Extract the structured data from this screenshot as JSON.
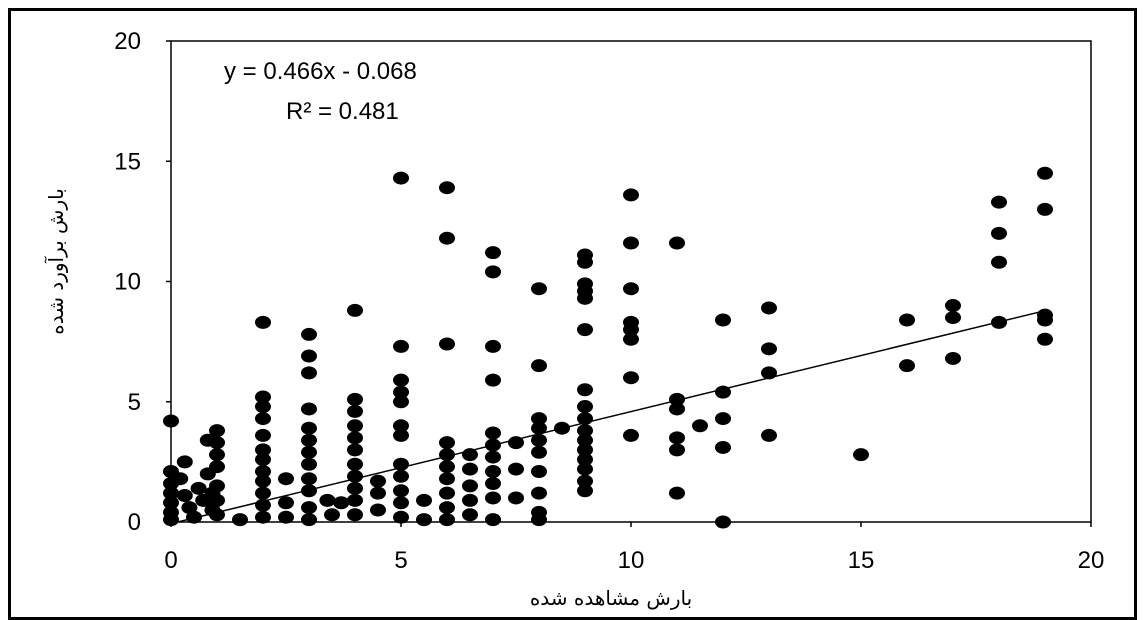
{
  "chart_data": {
    "type": "scatter",
    "title": "",
    "xlabel": "بارش مشاهده شده",
    "ylabel": "بارش برآورد شده",
    "xlim": [
      0,
      20
    ],
    "ylim": [
      0,
      20
    ],
    "xticks": [
      "0",
      "5",
      "10",
      "15",
      "20"
    ],
    "yticks": [
      "0",
      "5",
      "10",
      "15",
      "20"
    ],
    "grid": false,
    "trendline": {
      "slope": 0.466,
      "intercept": -0.068,
      "x_range": [
        0,
        19
      ]
    },
    "annotations": [
      "y = 0.466x - 0.068",
      "R² = 0.481"
    ],
    "marker_color": "#000000",
    "points": [
      [
        0,
        4.2
      ],
      [
        0,
        2.1
      ],
      [
        0,
        1.6
      ],
      [
        0,
        1.2
      ],
      [
        0,
        0.8
      ],
      [
        0,
        0.4
      ],
      [
        0,
        0.1
      ],
      [
        0.3,
        2.5
      ],
      [
        0.2,
        1.8
      ],
      [
        0.3,
        1.1
      ],
      [
        0.4,
        0.6
      ],
      [
        0.5,
        0.2
      ],
      [
        0.6,
        1.4
      ],
      [
        0.7,
        0.9
      ],
      [
        0.8,
        3.4
      ],
      [
        0.8,
        2.0
      ],
      [
        0.9,
        1.2
      ],
      [
        0.9,
        0.5
      ],
      [
        1,
        3.8
      ],
      [
        1,
        3.3
      ],
      [
        1,
        2.8
      ],
      [
        1,
        2.3
      ],
      [
        1,
        1.5
      ],
      [
        1,
        0.9
      ],
      [
        1,
        0.3
      ],
      [
        1.5,
        0.1
      ],
      [
        2,
        8.3
      ],
      [
        2,
        5.2
      ],
      [
        2,
        4.8
      ],
      [
        2,
        4.3
      ],
      [
        2,
        3.6
      ],
      [
        2,
        3.0
      ],
      [
        2,
        2.6
      ],
      [
        2,
        2.1
      ],
      [
        2,
        1.7
      ],
      [
        2,
        1.2
      ],
      [
        2,
        0.7
      ],
      [
        2,
        0.2
      ],
      [
        2.5,
        1.8
      ],
      [
        2.5,
        0.8
      ],
      [
        2.5,
        0.2
      ],
      [
        3,
        7.8
      ],
      [
        3,
        6.9
      ],
      [
        3,
        6.2
      ],
      [
        3,
        4.7
      ],
      [
        3,
        3.9
      ],
      [
        3,
        3.4
      ],
      [
        3,
        2.9
      ],
      [
        3,
        2.4
      ],
      [
        3,
        1.8
      ],
      [
        3,
        1.3
      ],
      [
        3,
        0.6
      ],
      [
        3,
        0.1
      ],
      [
        3.4,
        0.9
      ],
      [
        3.5,
        0.3
      ],
      [
        3.7,
        0.8
      ],
      [
        4,
        8.8
      ],
      [
        4,
        5.1
      ],
      [
        4,
        4.6
      ],
      [
        4,
        4.0
      ],
      [
        4,
        3.5
      ],
      [
        4,
        3.0
      ],
      [
        4,
        2.4
      ],
      [
        4,
        1.9
      ],
      [
        4,
        1.4
      ],
      [
        4,
        0.9
      ],
      [
        4,
        0.3
      ],
      [
        4.5,
        1.7
      ],
      [
        4.5,
        1.2
      ],
      [
        4.5,
        0.5
      ],
      [
        5,
        14.3
      ],
      [
        5,
        7.3
      ],
      [
        5,
        5.9
      ],
      [
        5,
        5.4
      ],
      [
        5,
        5.0
      ],
      [
        5,
        4.0
      ],
      [
        5,
        3.6
      ],
      [
        5,
        2.4
      ],
      [
        5,
        1.9
      ],
      [
        5,
        1.3
      ],
      [
        5,
        0.8
      ],
      [
        5,
        0.2
      ],
      [
        5.5,
        0.1
      ],
      [
        5.5,
        0.9
      ],
      [
        6,
        13.9
      ],
      [
        6,
        11.8
      ],
      [
        6,
        7.4
      ],
      [
        6,
        3.3
      ],
      [
        6,
        2.8
      ],
      [
        6,
        2.3
      ],
      [
        6,
        1.8
      ],
      [
        6,
        1.2
      ],
      [
        6,
        0.6
      ],
      [
        6,
        0.1
      ],
      [
        6.5,
        2.8
      ],
      [
        6.5,
        2.2
      ],
      [
        6.5,
        1.5
      ],
      [
        6.5,
        0.9
      ],
      [
        6.5,
        0.3
      ],
      [
        7,
        11.2
      ],
      [
        7,
        10.4
      ],
      [
        7,
        7.3
      ],
      [
        7,
        5.9
      ],
      [
        7,
        3.7
      ],
      [
        7,
        3.2
      ],
      [
        7,
        2.7
      ],
      [
        7,
        2.1
      ],
      [
        7,
        1.6
      ],
      [
        7,
        1.0
      ],
      [
        7,
        0.1
      ],
      [
        7.5,
        3.3
      ],
      [
        7.5,
        2.2
      ],
      [
        7.5,
        1.0
      ],
      [
        8,
        9.7
      ],
      [
        8,
        6.5
      ],
      [
        8,
        4.3
      ],
      [
        8,
        3.9
      ],
      [
        8,
        3.4
      ],
      [
        8,
        2.9
      ],
      [
        8,
        2.1
      ],
      [
        8,
        1.2
      ],
      [
        8,
        0.4
      ],
      [
        8,
        0.1
      ],
      [
        8.5,
        3.9
      ],
      [
        9,
        11.1
      ],
      [
        9,
        10.8
      ],
      [
        9,
        9.9
      ],
      [
        9,
        9.6
      ],
      [
        9,
        9.3
      ],
      [
        9,
        8.0
      ],
      [
        9,
        5.5
      ],
      [
        9,
        4.8
      ],
      [
        9,
        4.3
      ],
      [
        9,
        3.8
      ],
      [
        9,
        3.4
      ],
      [
        9,
        3.0
      ],
      [
        9,
        2.6
      ],
      [
        9,
        2.2
      ],
      [
        9,
        1.7
      ],
      [
        9,
        1.3
      ],
      [
        10,
        13.6
      ],
      [
        10,
        11.6
      ],
      [
        10,
        9.7
      ],
      [
        10,
        8.3
      ],
      [
        10,
        8.0
      ],
      [
        10,
        7.6
      ],
      [
        10,
        6.0
      ],
      [
        10,
        3.6
      ],
      [
        11,
        11.6
      ],
      [
        11,
        5.1
      ],
      [
        11,
        4.7
      ],
      [
        11,
        3.5
      ],
      [
        11,
        3.0
      ],
      [
        11,
        1.2
      ],
      [
        11.5,
        4.0
      ],
      [
        12,
        8.4
      ],
      [
        12,
        5.4
      ],
      [
        12,
        4.3
      ],
      [
        12,
        3.1
      ],
      [
        12,
        0.0
      ],
      [
        13,
        8.9
      ],
      [
        13,
        7.2
      ],
      [
        13,
        6.2
      ],
      [
        13,
        3.6
      ],
      [
        15,
        2.8
      ],
      [
        16,
        8.4
      ],
      [
        16,
        6.5
      ],
      [
        17,
        9.0
      ],
      [
        17,
        8.5
      ],
      [
        17,
        6.8
      ],
      [
        18,
        13.3
      ],
      [
        18,
        12.0
      ],
      [
        18,
        10.8
      ],
      [
        18,
        8.3
      ],
      [
        19,
        14.5
      ],
      [
        19,
        13.0
      ],
      [
        19,
        8.6
      ],
      [
        19,
        8.4
      ],
      [
        19,
        7.6
      ]
    ]
  }
}
